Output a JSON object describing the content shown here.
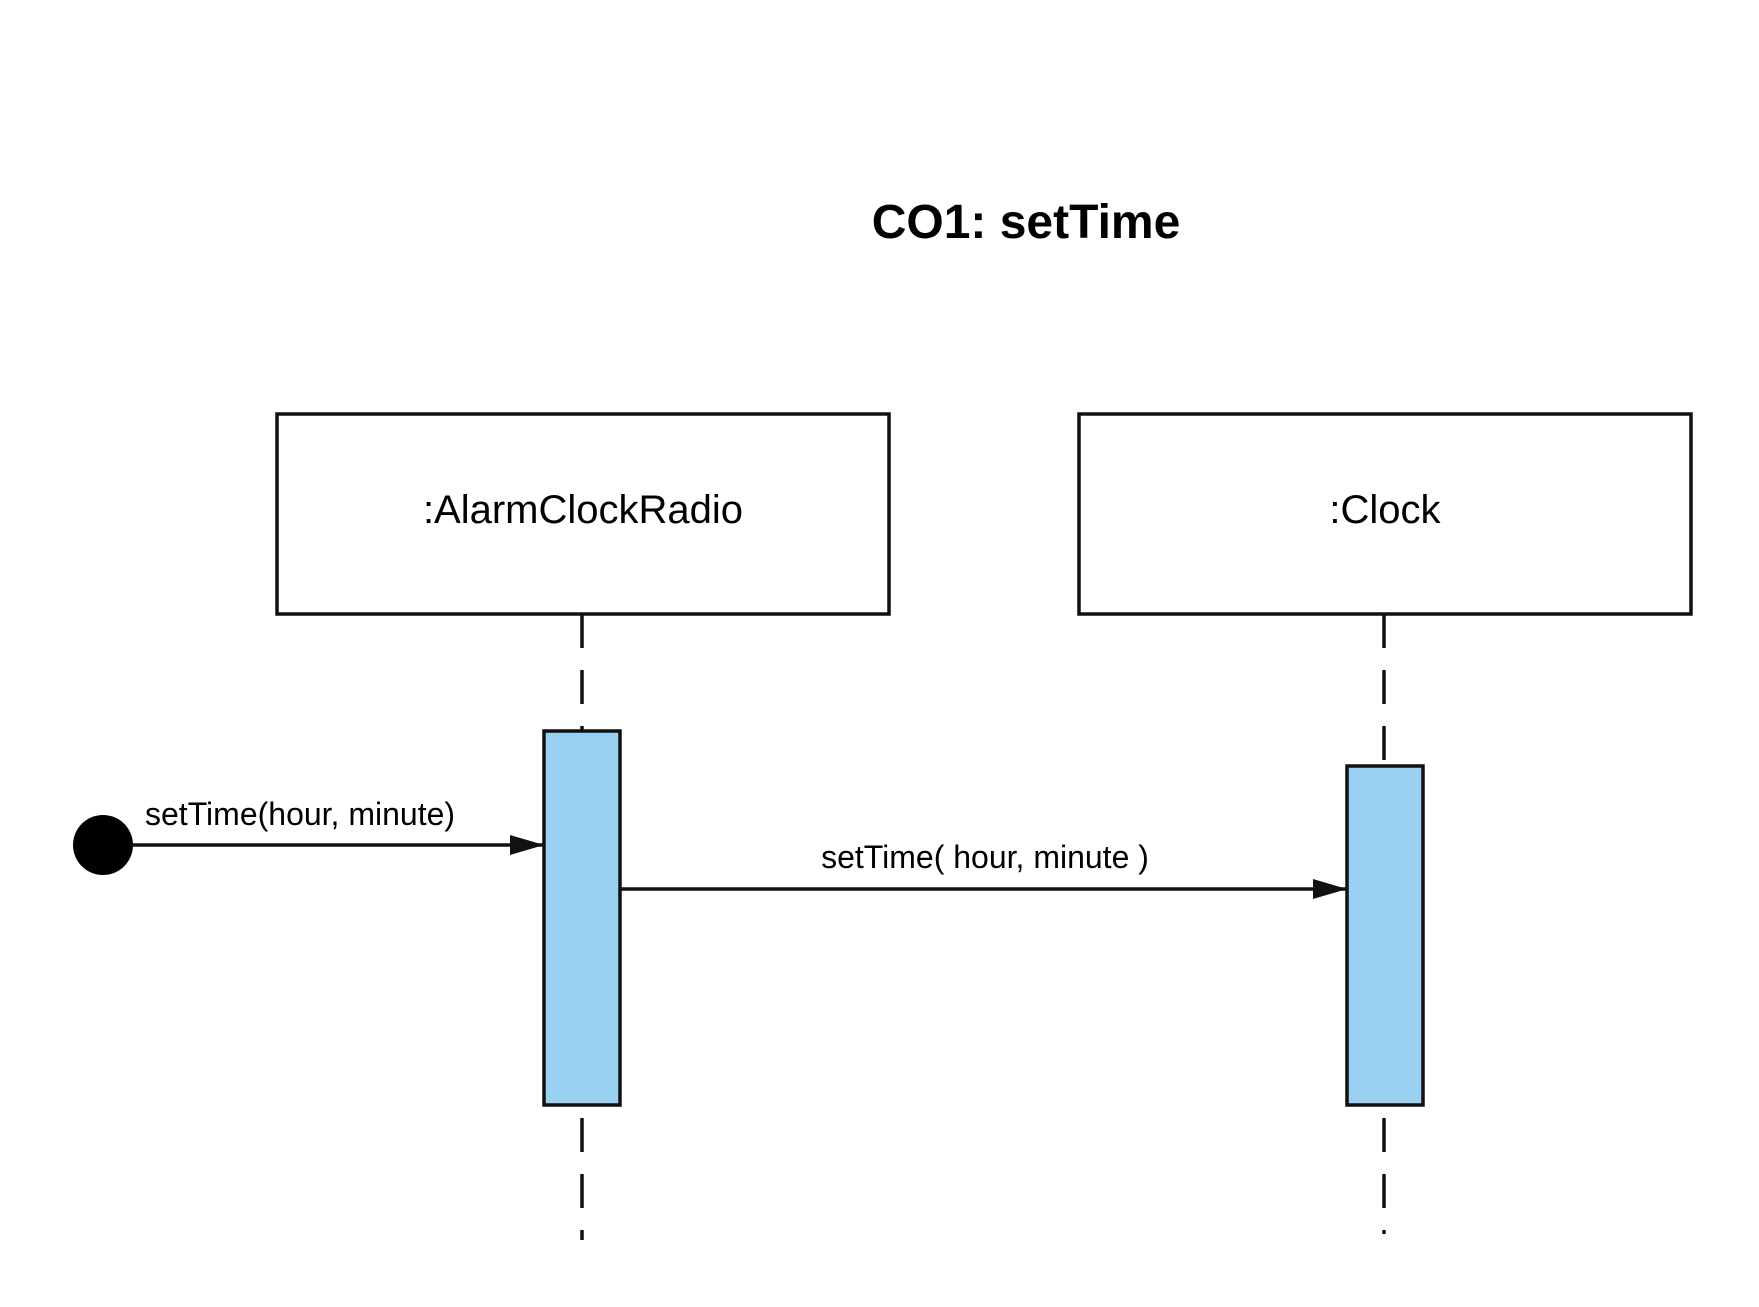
{
  "diagram": {
    "title": "CO1: setTime",
    "colors": {
      "activation_fill": "#9ad0f2",
      "stroke": "#111111",
      "background": "#ffffff"
    },
    "lifelines": [
      {
        "id": "alarm-clock-radio",
        "label": ":AlarmClockRadio"
      },
      {
        "id": "clock",
        "label": ":Clock"
      }
    ],
    "messages": [
      {
        "from": "initial",
        "to": "alarm-clock-radio",
        "label": "setTime(hour, minute)"
      },
      {
        "from": "alarm-clock-radio",
        "to": "clock",
        "label": "setTime( hour, minute )"
      }
    ]
  }
}
